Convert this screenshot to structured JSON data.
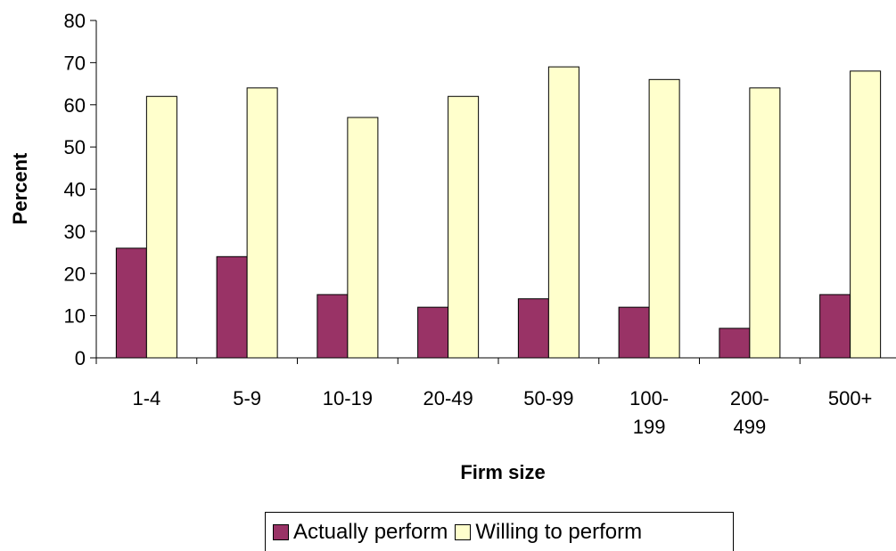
{
  "chart_data": {
    "type": "bar",
    "title": "",
    "xlabel": "Firm size",
    "ylabel": "Percent",
    "ylim": [
      0,
      80
    ],
    "yticks": [
      0,
      10,
      20,
      30,
      40,
      50,
      60,
      70,
      80
    ],
    "categories": [
      [
        "1-4"
      ],
      [
        "5-9"
      ],
      [
        "10-19"
      ],
      [
        "20-49"
      ],
      [
        "50-99"
      ],
      [
        "100-",
        "199"
      ],
      [
        "200-",
        "499"
      ],
      [
        "500+"
      ]
    ],
    "series": [
      {
        "name": "Actually perform",
        "color": "#993366",
        "values": [
          26,
          24,
          15,
          12,
          14,
          12,
          7,
          15
        ]
      },
      {
        "name": "Willing to perform",
        "color": "#FFFFCC",
        "values": [
          62,
          64,
          57,
          62,
          69,
          66,
          64,
          68
        ]
      }
    ],
    "grid": false,
    "legend_position": "bottom"
  }
}
